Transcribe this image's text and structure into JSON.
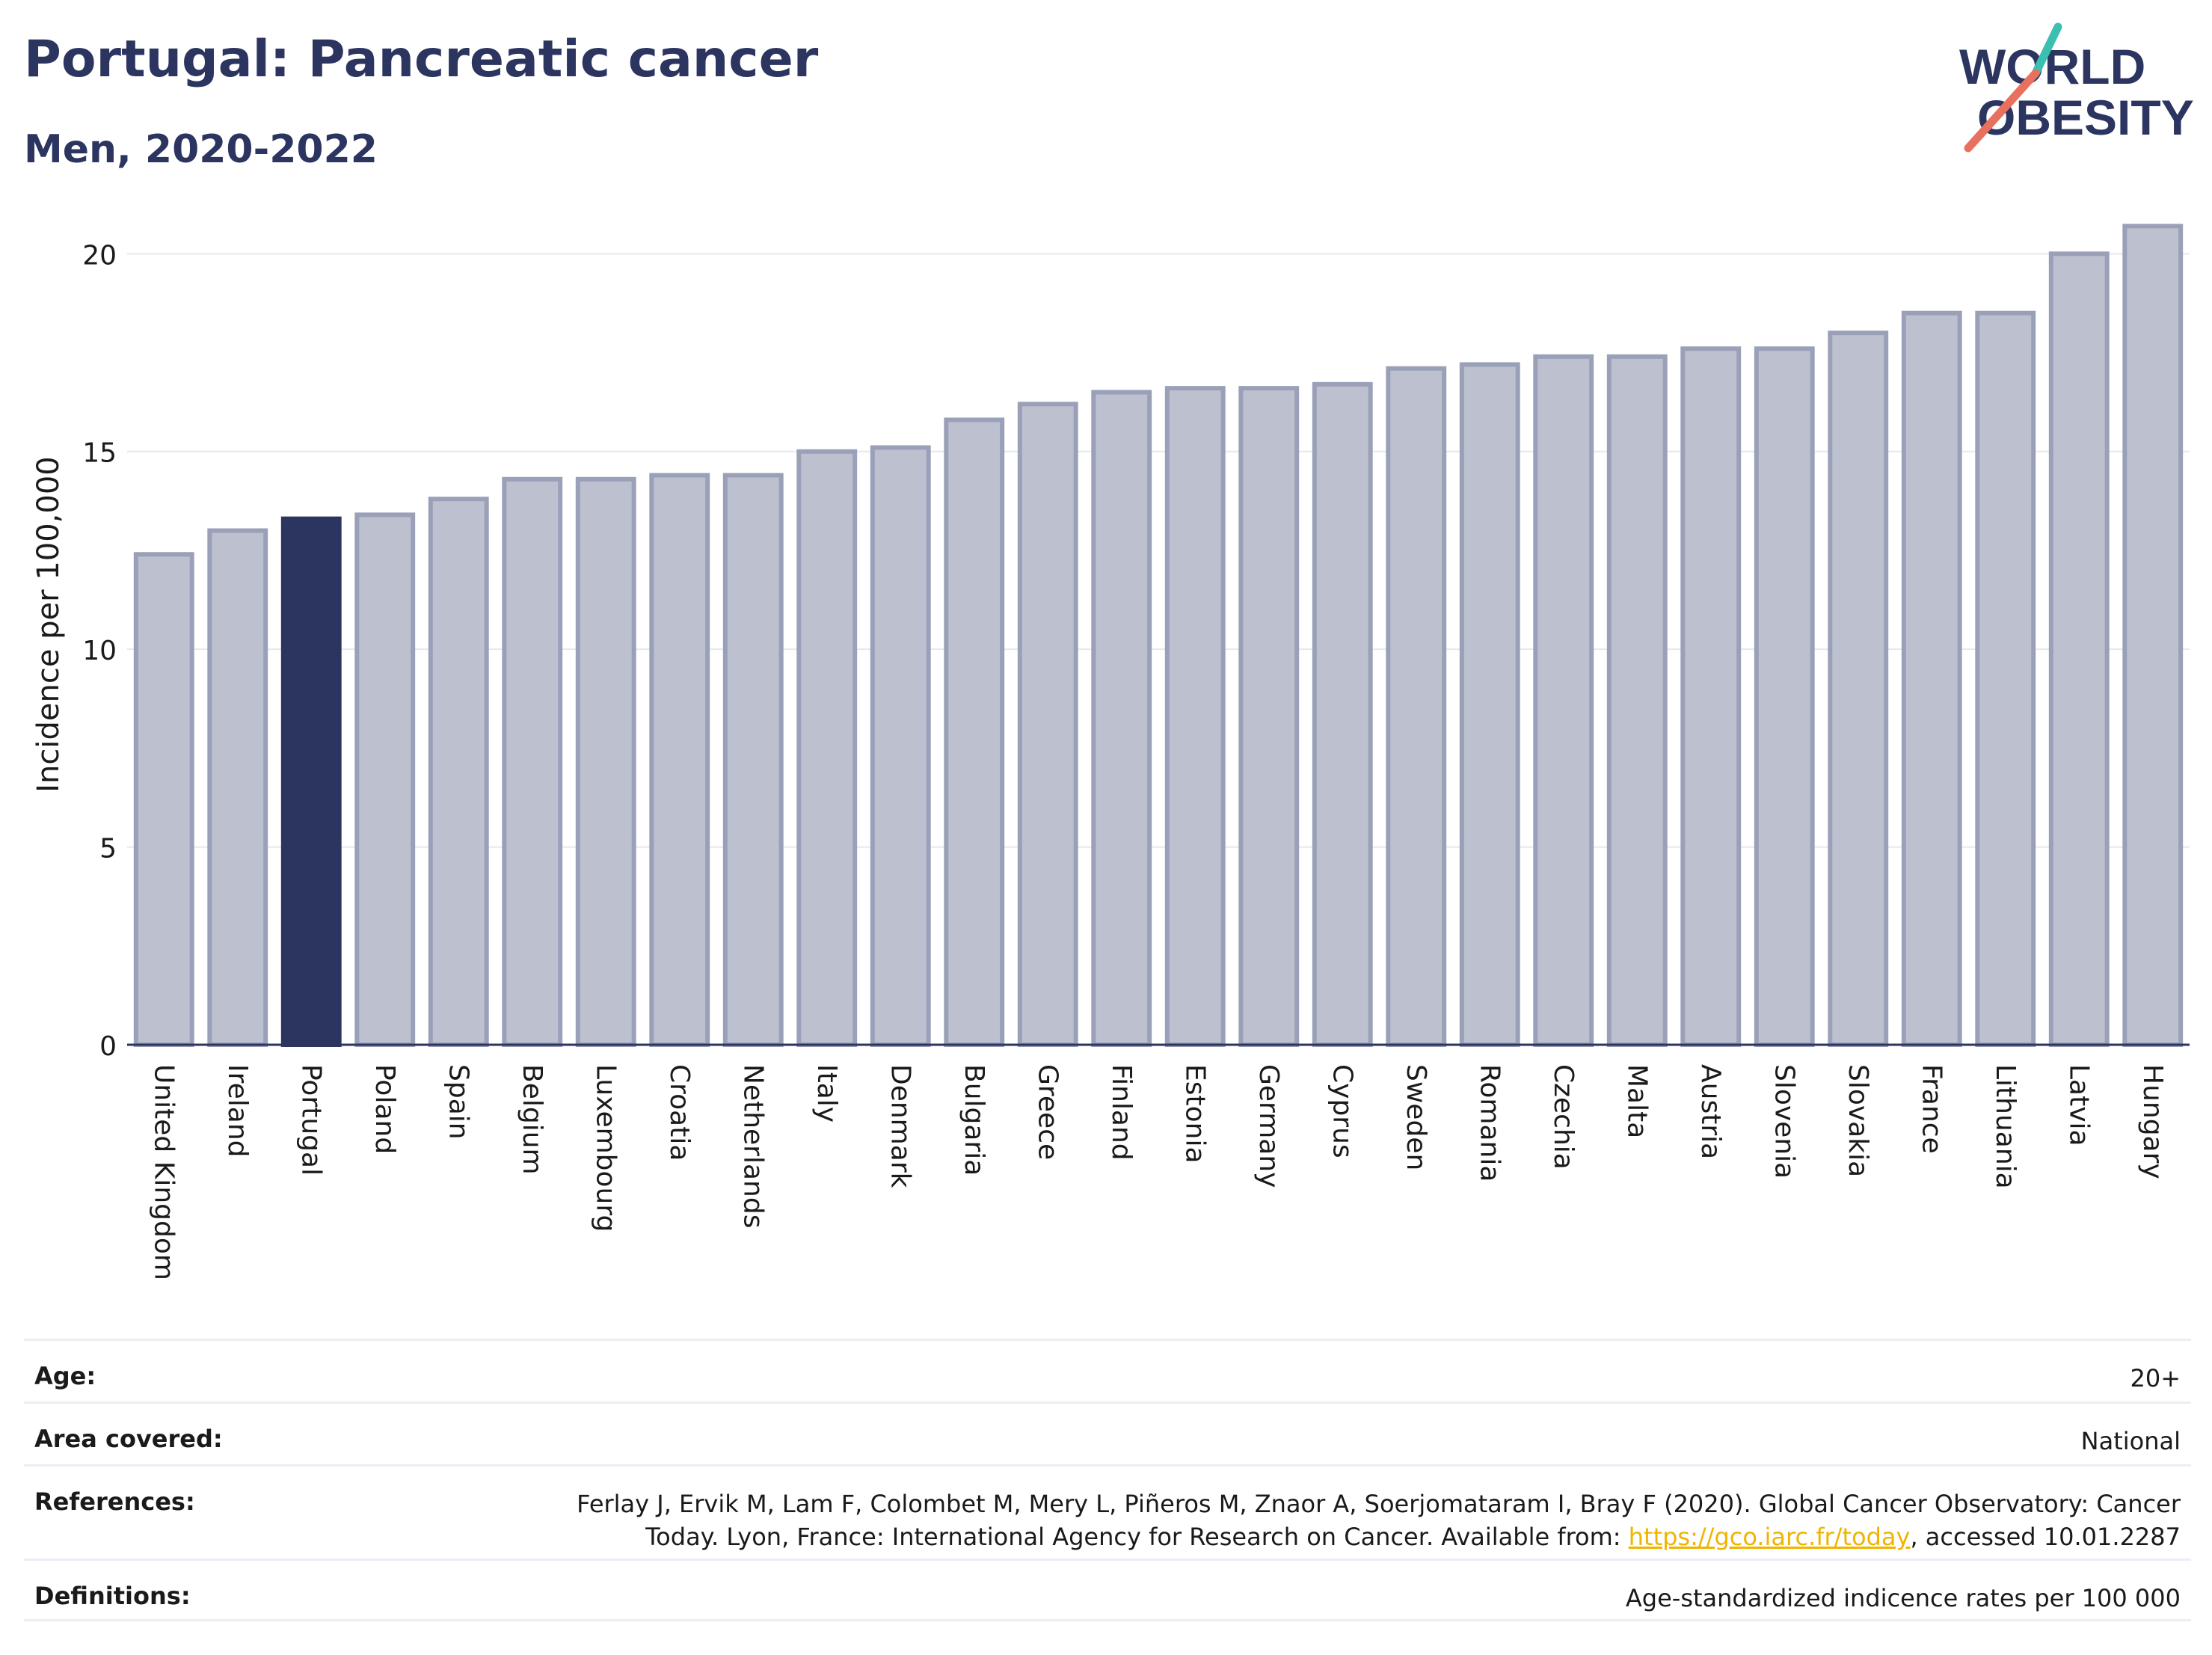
{
  "header": {
    "title": "Portugal: Pancreatic cancer",
    "subtitle": "Men, 2020-2022"
  },
  "logo": {
    "line1": "WORLD",
    "line2": "OBESITY",
    "accent_teal": "#3bbfb0",
    "accent_coral": "#e8705f",
    "text_color": "#2b3560"
  },
  "chart_data": {
    "type": "bar",
    "categories": [
      "United Kingdom",
      "Ireland",
      "Portugal",
      "Poland",
      "Spain",
      "Belgium",
      "Luxembourg",
      "Croatia",
      "Netherlands",
      "Italy",
      "Denmark",
      "Bulgaria",
      "Greece",
      "Finland",
      "Estonia",
      "Germany",
      "Cyprus",
      "Sweden",
      "Romania",
      "Czechia",
      "Malta",
      "Austria",
      "Slovenia",
      "Slovakia",
      "France",
      "Lithuania",
      "Latvia",
      "Hungary"
    ],
    "values": [
      12.4,
      13.0,
      13.3,
      13.4,
      13.8,
      14.3,
      14.3,
      14.4,
      14.4,
      15.0,
      15.1,
      15.8,
      16.2,
      16.5,
      16.6,
      16.6,
      16.7,
      17.1,
      17.2,
      17.4,
      17.4,
      17.6,
      17.6,
      18.0,
      18.5,
      18.5,
      20.0,
      20.7
    ],
    "highlight": "Portugal",
    "ylabel": "Incidence per 100,000",
    "ylim": [
      0,
      21.5
    ],
    "yticks": [
      0,
      5,
      10,
      15,
      20
    ],
    "grid": true,
    "colors": {
      "bar": "#bcc0cf",
      "bar_edge": "#9aa0b8",
      "highlight": "#2b3560"
    }
  },
  "meta": {
    "age_label": "Age:",
    "age_value": "20+",
    "area_label": "Area covered:",
    "area_value": "National",
    "ref_label": "References:",
    "ref_value_1": "Ferlay J, Ervik M, Lam F, Colombet M, Mery L, Piñeros M, Znaor A, Soerjomataram I, Bray F (2020). Global Cancer Observatory: Cancer",
    "ref_value_2a": "Today. Lyon, France: International Agency for Research on Cancer. Available from: ",
    "ref_link": "https://gco.iarc.fr/today",
    "ref_value_2b": ", accessed 10.01.2287",
    "def_label": "Definitions:",
    "def_value": "Age-standardized indicence rates per 100 000"
  }
}
